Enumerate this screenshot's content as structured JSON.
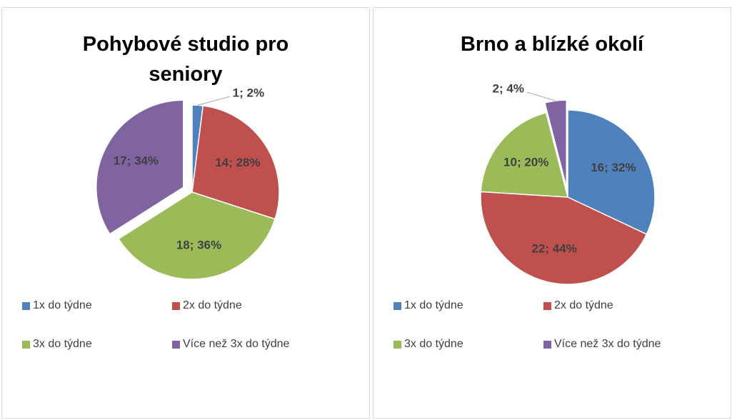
{
  "chart_data": [
    {
      "type": "pie",
      "title": "Pohybové studio pro seniory",
      "categories": [
        "1x do týdne",
        "2x do týdne",
        "3x do týdne",
        "Více než 3x do týdne"
      ],
      "values": [
        1,
        14,
        18,
        17
      ],
      "value_labels": [
        "1; 2%",
        "14; 28%",
        "18; 36%",
        "17; 34%"
      ],
      "colors": [
        "#4f81bd",
        "#c0504d",
        "#9bbb59",
        "#8064a2"
      ],
      "exploded": [
        false,
        false,
        false,
        true
      ]
    },
    {
      "type": "pie",
      "title": "Brno a blízké okolí",
      "categories": [
        "1x do týdne",
        "2x do týdne",
        "3x do týdne",
        "Více než 3x do týdne"
      ],
      "values": [
        16,
        22,
        10,
        2
      ],
      "value_labels": [
        "16; 32%",
        "22; 44%",
        "10; 20%",
        "2; 4%"
      ],
      "colors": [
        "#4f81bd",
        "#c0504d",
        "#9bbb59",
        "#8064a2"
      ],
      "exploded": [
        false,
        false,
        false,
        true
      ]
    }
  ]
}
